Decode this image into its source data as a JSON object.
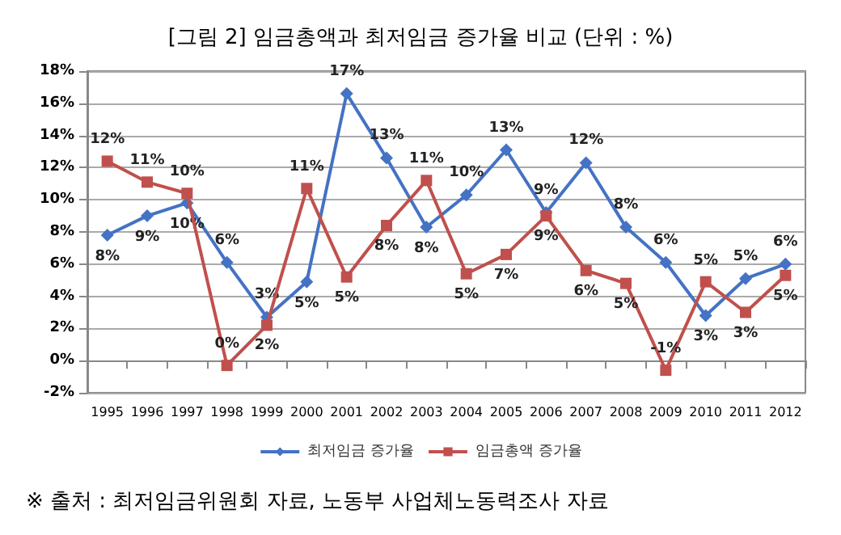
{
  "chart_data": {
    "type": "line",
    "title": "[그림 2] 임금총액과 최저임금 증가율 비교 (단위 : %)",
    "categories": [
      "1995",
      "1996",
      "1997",
      "1998",
      "1999",
      "2000",
      "2001",
      "2002",
      "2003",
      "2004",
      "2005",
      "2006",
      "2007",
      "2008",
      "2009",
      "2010",
      "2011",
      "2012"
    ],
    "series": [
      {
        "name": "최저임금 증가율",
        "color": "#4472c4",
        "marker": "diamond",
        "values": [
          7.8,
          9.0,
          9.8,
          6.1,
          2.7,
          4.9,
          16.6,
          12.6,
          8.3,
          10.3,
          13.1,
          9.2,
          12.3,
          8.3,
          6.1,
          2.8,
          5.1,
          6.0
        ],
        "value_labels": [
          "8%",
          "9%",
          "10%",
          "6%",
          "3%",
          "5%",
          "17%",
          "13%",
          "8%",
          "10%",
          "13%",
          "9%",
          "12%",
          "8%",
          "6%",
          "3%",
          "5%",
          "6%"
        ]
      },
      {
        "name": "임금총액 증가율",
        "color": "#c0504d",
        "marker": "square",
        "values": [
          12.4,
          11.1,
          10.4,
          -0.3,
          2.2,
          10.7,
          5.2,
          8.4,
          11.2,
          5.4,
          6.6,
          9.0,
          5.6,
          4.8,
          -0.6,
          4.9,
          3.0,
          5.3
        ],
        "value_labels": [
          "12%",
          "11%",
          "10%",
          "0%",
          "2%",
          "11%",
          "5%",
          "8%",
          "11%",
          "5%",
          "7%",
          "9%",
          "6%",
          "5%",
          "-1%",
          "5%",
          "3%",
          "5%"
        ]
      }
    ],
    "ylim": [
      -2,
      18
    ],
    "yticks": [
      {
        "value": -2,
        "label": "-2%"
      },
      {
        "value": 0,
        "label": "0%"
      },
      {
        "value": 2,
        "label": "2%"
      },
      {
        "value": 4,
        "label": "4%"
      },
      {
        "value": 6,
        "label": "6%"
      },
      {
        "value": 8,
        "label": "8%"
      },
      {
        "value": 10,
        "label": "10%"
      },
      {
        "value": 12,
        "label": "12%"
      },
      {
        "value": 14,
        "label": "14%"
      },
      {
        "value": 16,
        "label": "16%"
      },
      {
        "value": 18,
        "label": "18%"
      }
    ],
    "grid": "y",
    "legend": "bottom",
    "line_style": "solid",
    "annotations": [
      "※ 출처 : 최저임금위원회 자료, 노동부 사업체노동력조사 자료"
    ]
  }
}
